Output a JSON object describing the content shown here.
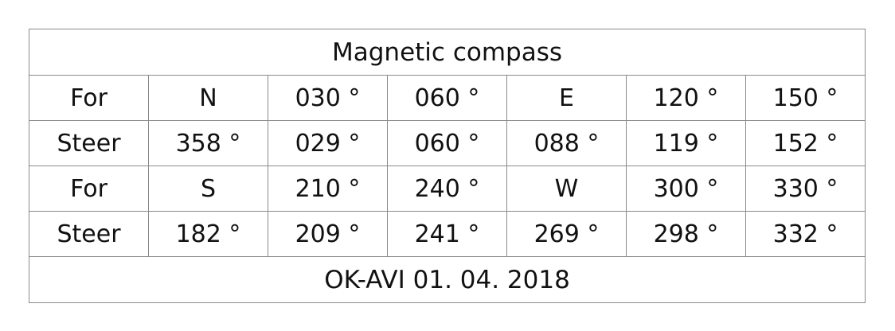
{
  "title": "Magnetic compass",
  "rows": [
    {
      "label": "For",
      "cells": [
        "N",
        "030 °",
        "060 °",
        "E",
        "120 °",
        "150 °"
      ]
    },
    {
      "label": "Steer",
      "cells": [
        "358 °",
        "029 °",
        "060 °",
        "088 °",
        "119 °",
        "152 °"
      ]
    },
    {
      "label": "For",
      "cells": [
        "S",
        "210 °",
        "240 °",
        "W",
        "300 °",
        "330 °"
      ]
    },
    {
      "label": "Steer",
      "cells": [
        "182 °",
        "209 °",
        "241 °",
        "269 °",
        "298 °",
        "332 °"
      ]
    }
  ],
  "footer": "OK-AVI 01. 04. 2018"
}
